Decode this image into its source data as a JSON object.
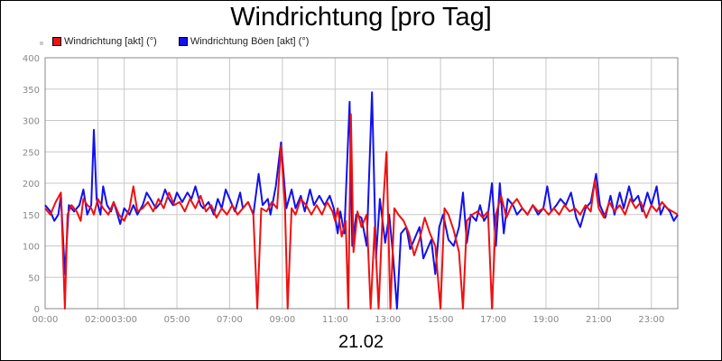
{
  "title": "Windrichtung [pro Tag]",
  "date_label": "21.02",
  "chart_data": {
    "type": "line",
    "title": "Windrichtung [pro Tag]",
    "xlabel": "21.02",
    "ylabel": "",
    "ylim": [
      0,
      400
    ],
    "xlim_hours": [
      0,
      24
    ],
    "y_ticks": [
      "0",
      "50",
      "100",
      "150",
      "200",
      "250",
      "300",
      "350",
      "400"
    ],
    "x_ticks": [
      "00:00",
      "02:00",
      "03:00",
      "05:00",
      "07:00",
      "09:00",
      "11:00",
      "13:00",
      "15:00",
      "17:00",
      "19:00",
      "21:00",
      "23:00"
    ],
    "x_tick_hours": [
      0,
      2,
      3,
      5,
      7,
      9,
      11,
      13,
      15,
      17,
      19,
      21,
      23
    ],
    "grid": true,
    "legend_position": "top-left",
    "series": [
      {
        "name": "Windrichtung [akt] (°)",
        "color": "#ee1111",
        "points": [
          [
            0.0,
            160
          ],
          [
            0.2,
            150
          ],
          [
            0.4,
            170
          ],
          [
            0.6,
            185
          ],
          [
            0.75,
            0
          ],
          [
            0.85,
            150
          ],
          [
            1.0,
            165
          ],
          [
            1.2,
            155
          ],
          [
            1.35,
            140
          ],
          [
            1.45,
            175
          ],
          [
            1.6,
            165
          ],
          [
            1.75,
            160
          ],
          [
            1.85,
            150
          ],
          [
            2.0,
            175
          ],
          [
            2.2,
            160
          ],
          [
            2.4,
            150
          ],
          [
            2.6,
            170
          ],
          [
            2.8,
            150
          ],
          [
            3.0,
            140
          ],
          [
            3.2,
            160
          ],
          [
            3.35,
            195
          ],
          [
            3.5,
            155
          ],
          [
            3.7,
            160
          ],
          [
            3.9,
            170
          ],
          [
            4.1,
            155
          ],
          [
            4.3,
            175
          ],
          [
            4.5,
            160
          ],
          [
            4.7,
            185
          ],
          [
            4.9,
            165
          ],
          [
            5.1,
            170
          ],
          [
            5.3,
            155
          ],
          [
            5.5,
            175
          ],
          [
            5.7,
            160
          ],
          [
            5.9,
            180
          ],
          [
            6.1,
            155
          ],
          [
            6.3,
            165
          ],
          [
            6.5,
            145
          ],
          [
            6.7,
            160
          ],
          [
            6.9,
            150
          ],
          [
            7.1,
            165
          ],
          [
            7.3,
            150
          ],
          [
            7.5,
            160
          ],
          [
            7.7,
            170
          ],
          [
            7.9,
            150
          ],
          [
            8.05,
            0
          ],
          [
            8.2,
            160
          ],
          [
            8.4,
            155
          ],
          [
            8.6,
            170
          ],
          [
            8.8,
            160
          ],
          [
            8.95,
            260
          ],
          [
            9.1,
            160
          ],
          [
            9.2,
            0
          ],
          [
            9.35,
            160
          ],
          [
            9.5,
            150
          ],
          [
            9.7,
            175
          ],
          [
            9.9,
            165
          ],
          [
            10.1,
            150
          ],
          [
            10.3,
            165
          ],
          [
            10.5,
            150
          ],
          [
            10.7,
            170
          ],
          [
            10.9,
            155
          ],
          [
            11.0,
            140
          ],
          [
            11.1,
            160
          ],
          [
            11.25,
            115
          ],
          [
            11.4,
            140
          ],
          [
            11.5,
            0
          ],
          [
            11.6,
            310
          ],
          [
            11.7,
            90
          ],
          [
            11.85,
            155
          ],
          [
            12.0,
            130
          ],
          [
            12.2,
            150
          ],
          [
            12.35,
            0
          ],
          [
            12.5,
            130
          ],
          [
            12.65,
            0
          ],
          [
            12.8,
            150
          ],
          [
            12.95,
            250
          ],
          [
            13.1,
            0
          ],
          [
            13.25,
            160
          ],
          [
            13.4,
            150
          ],
          [
            13.6,
            140
          ],
          [
            13.8,
            120
          ],
          [
            14.0,
            85
          ],
          [
            14.2,
            110
          ],
          [
            14.4,
            145
          ],
          [
            14.6,
            120
          ],
          [
            14.8,
            100
          ],
          [
            15.0,
            0
          ],
          [
            15.15,
            160
          ],
          [
            15.3,
            150
          ],
          [
            15.5,
            125
          ],
          [
            15.7,
            90
          ],
          [
            15.85,
            0
          ],
          [
            16.0,
            140
          ],
          [
            16.2,
            150
          ],
          [
            16.4,
            155
          ],
          [
            16.6,
            145
          ],
          [
            16.8,
            155
          ],
          [
            16.95,
            0
          ],
          [
            17.1,
            150
          ],
          [
            17.3,
            180
          ],
          [
            17.5,
            145
          ],
          [
            17.7,
            165
          ],
          [
            17.9,
            175
          ],
          [
            18.1,
            160
          ],
          [
            18.3,
            150
          ],
          [
            18.5,
            165
          ],
          [
            18.7,
            155
          ],
          [
            18.9,
            160
          ],
          [
            19.1,
            150
          ],
          [
            19.3,
            160
          ],
          [
            19.5,
            150
          ],
          [
            19.7,
            165
          ],
          [
            19.9,
            155
          ],
          [
            20.1,
            160
          ],
          [
            20.3,
            150
          ],
          [
            20.5,
            165
          ],
          [
            20.7,
            155
          ],
          [
            20.85,
            205
          ],
          [
            21.0,
            160
          ],
          [
            21.2,
            145
          ],
          [
            21.4,
            170
          ],
          [
            21.6,
            155
          ],
          [
            21.8,
            165
          ],
          [
            22.0,
            150
          ],
          [
            22.2,
            175
          ],
          [
            22.4,
            160
          ],
          [
            22.6,
            170
          ],
          [
            22.8,
            145
          ],
          [
            23.0,
            165
          ],
          [
            23.2,
            155
          ],
          [
            23.4,
            170
          ],
          [
            23.6,
            160
          ],
          [
            23.8,
            155
          ],
          [
            24.0,
            150
          ]
        ]
      },
      {
        "name": "Windrichtung Böen [akt] (°)",
        "color": "#1111ee",
        "points": [
          [
            0.0,
            165
          ],
          [
            0.2,
            155
          ],
          [
            0.35,
            140
          ],
          [
            0.5,
            150
          ],
          [
            0.6,
            180
          ],
          [
            0.75,
            55
          ],
          [
            0.9,
            165
          ],
          [
            1.1,
            155
          ],
          [
            1.3,
            165
          ],
          [
            1.45,
            190
          ],
          [
            1.6,
            150
          ],
          [
            1.75,
            165
          ],
          [
            1.85,
            285
          ],
          [
            1.95,
            175
          ],
          [
            2.1,
            150
          ],
          [
            2.2,
            195
          ],
          [
            2.35,
            165
          ],
          [
            2.5,
            155
          ],
          [
            2.6,
            170
          ],
          [
            2.75,
            150
          ],
          [
            2.85,
            135
          ],
          [
            3.0,
            160
          ],
          [
            3.2,
            150
          ],
          [
            3.35,
            165
          ],
          [
            3.5,
            150
          ],
          [
            3.7,
            165
          ],
          [
            3.85,
            185
          ],
          [
            4.0,
            175
          ],
          [
            4.2,
            160
          ],
          [
            4.4,
            170
          ],
          [
            4.55,
            190
          ],
          [
            4.7,
            175
          ],
          [
            4.85,
            165
          ],
          [
            5.0,
            185
          ],
          [
            5.2,
            170
          ],
          [
            5.4,
            185
          ],
          [
            5.55,
            175
          ],
          [
            5.7,
            195
          ],
          [
            5.9,
            165
          ],
          [
            6.0,
            160
          ],
          [
            6.2,
            170
          ],
          [
            6.4,
            150
          ],
          [
            6.55,
            175
          ],
          [
            6.7,
            160
          ],
          [
            6.85,
            190
          ],
          [
            7.05,
            170
          ],
          [
            7.2,
            155
          ],
          [
            7.4,
            185
          ],
          [
            7.5,
            160
          ],
          [
            7.7,
            170
          ],
          [
            7.9,
            150
          ],
          [
            8.1,
            215
          ],
          [
            8.25,
            165
          ],
          [
            8.45,
            175
          ],
          [
            8.55,
            150
          ],
          [
            8.75,
            195
          ],
          [
            8.95,
            265
          ],
          [
            9.15,
            160
          ],
          [
            9.35,
            190
          ],
          [
            9.5,
            160
          ],
          [
            9.7,
            180
          ],
          [
            9.85,
            155
          ],
          [
            10.05,
            190
          ],
          [
            10.2,
            165
          ],
          [
            10.4,
            180
          ],
          [
            10.6,
            165
          ],
          [
            10.8,
            180
          ],
          [
            10.95,
            160
          ],
          [
            11.1,
            120
          ],
          [
            11.2,
            155
          ],
          [
            11.35,
            120
          ],
          [
            11.55,
            330
          ],
          [
            11.65,
            100
          ],
          [
            11.8,
            150
          ],
          [
            12.0,
            145
          ],
          [
            12.2,
            100
          ],
          [
            12.4,
            345
          ],
          [
            12.55,
            80
          ],
          [
            12.7,
            175
          ],
          [
            12.9,
            105
          ],
          [
            13.05,
            150
          ],
          [
            13.2,
            85
          ],
          [
            13.35,
            0
          ],
          [
            13.5,
            120
          ],
          [
            13.7,
            130
          ],
          [
            13.85,
            95
          ],
          [
            14.0,
            110
          ],
          [
            14.2,
            130
          ],
          [
            14.35,
            80
          ],
          [
            14.5,
            95
          ],
          [
            14.65,
            110
          ],
          [
            14.8,
            55
          ],
          [
            14.95,
            130
          ],
          [
            15.1,
            150
          ],
          [
            15.3,
            110
          ],
          [
            15.5,
            100
          ],
          [
            15.7,
            130
          ],
          [
            15.85,
            185
          ],
          [
            16.0,
            105
          ],
          [
            16.15,
            150
          ],
          [
            16.35,
            140
          ],
          [
            16.5,
            165
          ],
          [
            16.65,
            140
          ],
          [
            16.8,
            150
          ],
          [
            16.95,
            200
          ],
          [
            17.1,
            100
          ],
          [
            17.25,
            200
          ],
          [
            17.4,
            120
          ],
          [
            17.55,
            175
          ],
          [
            17.75,
            165
          ],
          [
            17.9,
            150
          ],
          [
            18.1,
            160
          ],
          [
            18.3,
            150
          ],
          [
            18.5,
            165
          ],
          [
            18.7,
            150
          ],
          [
            18.9,
            160
          ],
          [
            19.05,
            195
          ],
          [
            19.2,
            155
          ],
          [
            19.4,
            165
          ],
          [
            19.55,
            175
          ],
          [
            19.75,
            165
          ],
          [
            19.95,
            185
          ],
          [
            20.15,
            145
          ],
          [
            20.3,
            130
          ],
          [
            20.5,
            160
          ],
          [
            20.7,
            170
          ],
          [
            20.9,
            215
          ],
          [
            21.05,
            165
          ],
          [
            21.25,
            145
          ],
          [
            21.45,
            180
          ],
          [
            21.6,
            150
          ],
          [
            21.8,
            185
          ],
          [
            21.95,
            160
          ],
          [
            22.15,
            195
          ],
          [
            22.3,
            170
          ],
          [
            22.5,
            180
          ],
          [
            22.65,
            155
          ],
          [
            22.85,
            185
          ],
          [
            23.0,
            165
          ],
          [
            23.2,
            195
          ],
          [
            23.35,
            150
          ],
          [
            23.5,
            165
          ],
          [
            23.7,
            155
          ],
          [
            23.85,
            140
          ],
          [
            24.0,
            150
          ]
        ]
      }
    ]
  }
}
